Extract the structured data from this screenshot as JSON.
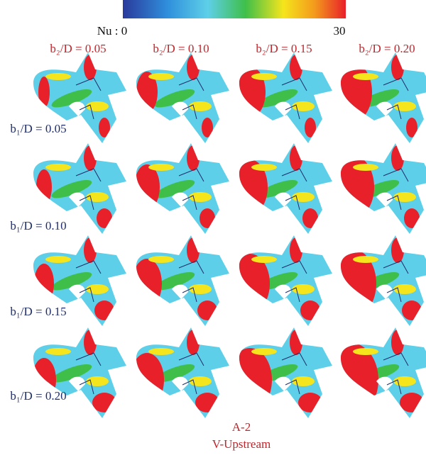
{
  "colorbar": {
    "min_label": "Nu : 0",
    "max_label": "30"
  },
  "columns": [
    "b₂/D = 0.05",
    "b₂/D = 0.10",
    "b₂/D = 0.15",
    "b₂/D = 0.20"
  ],
  "rows": [
    "b₁/D = 0.05",
    "b₁/D = 0.10",
    "b₁/D = 0.15",
    "b₁/D = 0.20"
  ],
  "caption": {
    "line1": "A-2",
    "line2": "V-Upstream"
  }
}
